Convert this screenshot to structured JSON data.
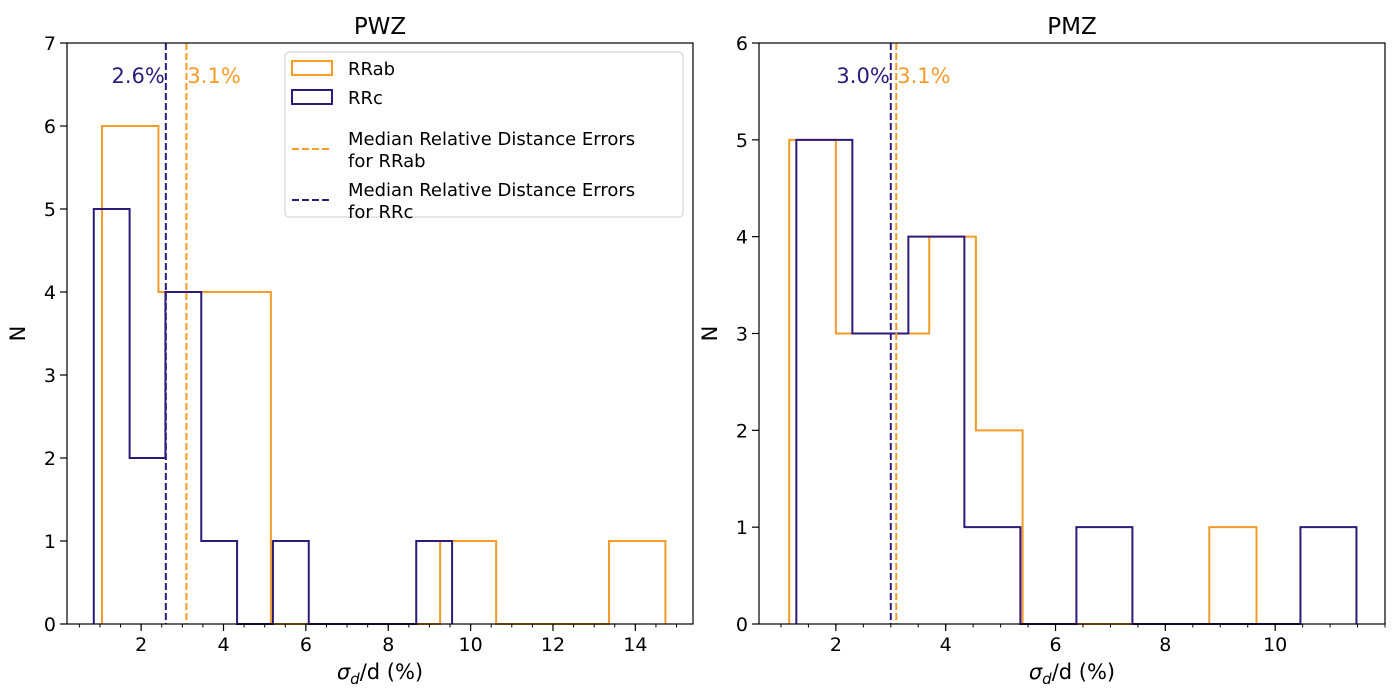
{
  "chart_data": [
    {
      "type": "histogram",
      "title": "PWZ",
      "xlabel_symbol": "σ",
      "xlabel_sub": "d",
      "xlabel_rest": "/d (%)",
      "ylabel": "N",
      "xlim": [
        0.2,
        15.4
      ],
      "ylim": [
        0,
        7
      ],
      "xticks": [
        2,
        4,
        6,
        8,
        10,
        12,
        14
      ],
      "yticks": [
        0,
        1,
        2,
        3,
        4,
        5,
        6,
        7
      ],
      "x_minor_step": 0.5,
      "series": [
        {
          "name": "RRab",
          "color": "#f59b2a",
          "bin_edges": [
            1.05,
            2.42,
            3.78,
            5.15,
            6.52,
            7.89,
            9.26,
            10.62,
            11.99,
            13.36,
            14.73
          ],
          "counts": [
            6,
            4,
            4,
            0,
            0,
            0,
            1,
            0,
            0,
            1
          ]
        },
        {
          "name": "RRc",
          "color": "#2e1a7a",
          "bin_edges": [
            0.85,
            1.72,
            2.59,
            3.46,
            4.33,
            5.2,
            6.07,
            6.94,
            7.81,
            8.68,
            9.55
          ],
          "counts": [
            5,
            2,
            4,
            1,
            0,
            1,
            0,
            0,
            0,
            1
          ]
        }
      ],
      "medians": [
        {
          "series": "RRc",
          "value": 2.6,
          "label": "2.6%",
          "color": "#2e1a7a",
          "label_side": "left"
        },
        {
          "series": "RRab",
          "value": 3.1,
          "label": "3.1%",
          "color": "#f59b2a",
          "label_side": "right"
        }
      ],
      "legend": {
        "placement": "top-right",
        "entries": [
          {
            "kind": "patch",
            "color": "#f59b2a",
            "lines": [
              "RRab"
            ]
          },
          {
            "kind": "patch",
            "color": "#2e1a7a",
            "lines": [
              "RRc"
            ]
          },
          {
            "kind": "dash",
            "color": "#f59b2a",
            "lines": [
              "Median Relative Distance Errors",
              "for RRab"
            ]
          },
          {
            "kind": "dash",
            "color": "#2e1a7a",
            "lines": [
              "Median Relative Distance Errors",
              "for RRc"
            ]
          }
        ]
      }
    },
    {
      "type": "histogram",
      "title": "PMZ",
      "xlabel_symbol": "σ",
      "xlabel_sub": "d",
      "xlabel_rest": "/d (%)",
      "ylabel": "N",
      "xlim": [
        0.6,
        12.0
      ],
      "ylim": [
        0,
        6
      ],
      "xticks": [
        2,
        4,
        6,
        8,
        10
      ],
      "yticks": [
        0,
        1,
        2,
        3,
        4,
        5,
        6
      ],
      "x_minor_step": 0.5,
      "series": [
        {
          "name": "RRab",
          "color": "#f59b2a",
          "bin_edges": [
            1.15,
            2.0,
            2.85,
            3.7,
            4.55,
            5.4,
            6.25,
            7.1,
            7.95,
            8.8,
            9.66
          ],
          "counts": [
            5,
            3,
            3,
            4,
            2,
            0,
            0,
            0,
            0,
            1
          ]
        },
        {
          "name": "RRc",
          "color": "#2e1a7a",
          "bin_edges": [
            1.28,
            2.3,
            3.32,
            4.34,
            5.36,
            6.38,
            7.4,
            8.42,
            9.44,
            10.46,
            11.48
          ],
          "counts": [
            5,
            3,
            4,
            1,
            0,
            1,
            0,
            0,
            0,
            1
          ]
        }
      ],
      "medians": [
        {
          "series": "RRc",
          "value": 3.0,
          "label": "3.0%",
          "color": "#2e1a7a",
          "label_side": "left"
        },
        {
          "series": "RRab",
          "value": 3.1,
          "label": "3.1%",
          "color": "#f59b2a",
          "label_side": "right"
        }
      ]
    }
  ]
}
